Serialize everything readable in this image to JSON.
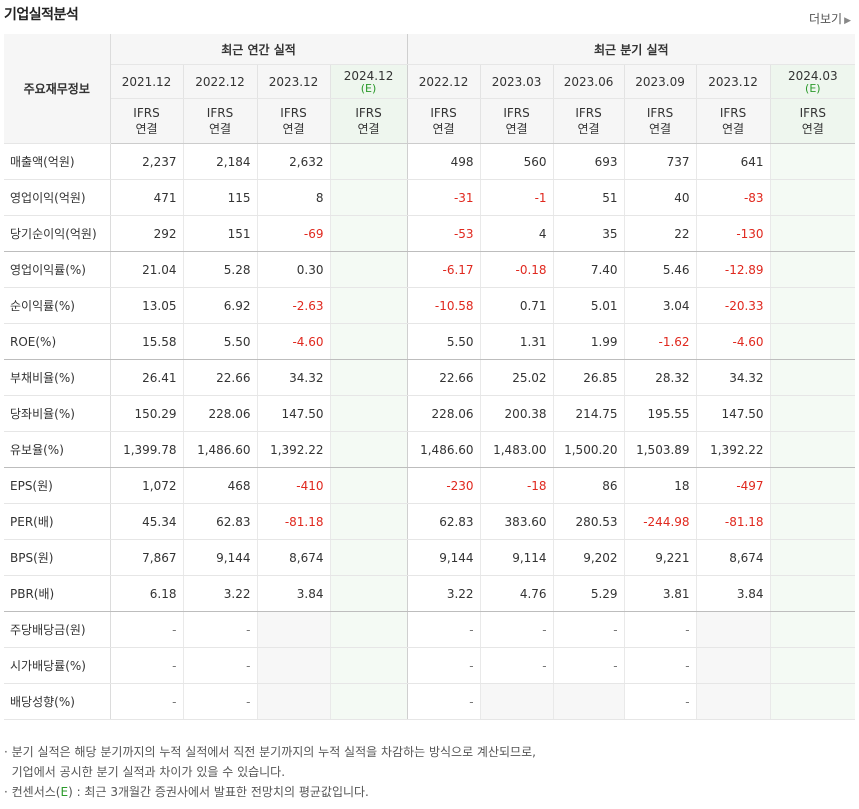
{
  "header": {
    "title": "기업실적분석",
    "more_label": "더보기"
  },
  "table": {
    "row_header": "주요재무정보",
    "annual_group": "최근 연간 실적",
    "quarter_group": "최근 분기 실적",
    "annual_periods": [
      {
        "label": "2021.12",
        "est": ""
      },
      {
        "label": "2022.12",
        "est": ""
      },
      {
        "label": "2023.12",
        "est": ""
      },
      {
        "label": "2024.12",
        "est": "(E)"
      }
    ],
    "quarter_periods": [
      {
        "label": "2022.12",
        "est": ""
      },
      {
        "label": "2023.03",
        "est": ""
      },
      {
        "label": "2023.06",
        "est": ""
      },
      {
        "label": "2023.09",
        "est": ""
      },
      {
        "label": "2023.12",
        "est": ""
      },
      {
        "label": "2024.03",
        "est": "(E)"
      }
    ],
    "ifrs_line1": "IFRS",
    "ifrs_line2": "연결",
    "rows": [
      {
        "label": "매출액(억원)",
        "annual": [
          "2,237",
          "2,184",
          "2,632",
          ""
        ],
        "quarter": [
          "498",
          "560",
          "693",
          "737",
          "641",
          ""
        ]
      },
      {
        "label": "영업이익(억원)",
        "annual": [
          "471",
          "115",
          "8",
          ""
        ],
        "quarter": [
          "-31",
          "-1",
          "51",
          "40",
          "-83",
          ""
        ]
      },
      {
        "label": "당기순이익(억원)",
        "annual": [
          "292",
          "151",
          "-69",
          ""
        ],
        "quarter": [
          "-53",
          "4",
          "35",
          "22",
          "-130",
          ""
        ]
      },
      {
        "label": "영업이익률(%)",
        "annual": [
          "21.04",
          "5.28",
          "0.30",
          ""
        ],
        "quarter": [
          "-6.17",
          "-0.18",
          "7.40",
          "5.46",
          "-12.89",
          ""
        ]
      },
      {
        "label": "순이익률(%)",
        "annual": [
          "13.05",
          "6.92",
          "-2.63",
          ""
        ],
        "quarter": [
          "-10.58",
          "0.71",
          "5.01",
          "3.04",
          "-20.33",
          ""
        ]
      },
      {
        "label": "ROE(%)",
        "annual": [
          "15.58",
          "5.50",
          "-4.60",
          ""
        ],
        "quarter": [
          "5.50",
          "1.31",
          "1.99",
          "-1.62",
          "-4.60",
          ""
        ]
      },
      {
        "label": "부채비율(%)",
        "annual": [
          "26.41",
          "22.66",
          "34.32",
          ""
        ],
        "quarter": [
          "22.66",
          "25.02",
          "26.85",
          "28.32",
          "34.32",
          ""
        ]
      },
      {
        "label": "당좌비율(%)",
        "annual": [
          "150.29",
          "228.06",
          "147.50",
          ""
        ],
        "quarter": [
          "228.06",
          "200.38",
          "214.75",
          "195.55",
          "147.50",
          ""
        ]
      },
      {
        "label": "유보율(%)",
        "annual": [
          "1,399.78",
          "1,486.60",
          "1,392.22",
          ""
        ],
        "quarter": [
          "1,486.60",
          "1,483.00",
          "1,500.20",
          "1,503.89",
          "1,392.22",
          ""
        ]
      },
      {
        "label": "EPS(원)",
        "annual": [
          "1,072",
          "468",
          "-410",
          ""
        ],
        "quarter": [
          "-230",
          "-18",
          "86",
          "18",
          "-497",
          ""
        ]
      },
      {
        "label": "PER(배)",
        "annual": [
          "45.34",
          "62.83",
          "-81.18",
          ""
        ],
        "quarter": [
          "62.83",
          "383.60",
          "280.53",
          "-244.98",
          "-81.18",
          ""
        ]
      },
      {
        "label": "BPS(원)",
        "annual": [
          "7,867",
          "9,144",
          "8,674",
          ""
        ],
        "quarter": [
          "9,144",
          "9,114",
          "9,202",
          "9,221",
          "8,674",
          ""
        ]
      },
      {
        "label": "PBR(배)",
        "annual": [
          "6.18",
          "3.22",
          "3.84",
          ""
        ],
        "quarter": [
          "3.22",
          "4.76",
          "5.29",
          "3.81",
          "3.84",
          ""
        ]
      },
      {
        "label": "주당배당금(원)",
        "annual": [
          "-",
          "-",
          "",
          ""
        ],
        "quarter": [
          "-",
          "-",
          "-",
          "-",
          "",
          ""
        ]
      },
      {
        "label": "시가배당률(%)",
        "annual": [
          "-",
          "-",
          "",
          ""
        ],
        "quarter": [
          "-",
          "-",
          "-",
          "-",
          "",
          ""
        ]
      },
      {
        "label": "배당성향(%)",
        "annual": [
          "-",
          "-",
          "",
          ""
        ],
        "quarter": [
          "-",
          "",
          "",
          "-",
          "",
          ""
        ]
      }
    ]
  },
  "notes": {
    "line1": "분기 실적은 해당 분기까지의 누적 실적에서 직전 분기까지의 누적 실적을 차감하는 방식으로 계산되므로,",
    "line2": "기업에서 공시한 분기 실적과 차이가 있을 수 있습니다.",
    "line3_pre": "컨센서스(",
    "line3_e": "E",
    "line3_post": ") : 최근 3개월간 증권사에서 발표한 전망치의 평균값입니다."
  },
  "colors": {
    "negative": "#e0281e",
    "ifrs": "#e87a17",
    "estimate": "#2b9a2b"
  }
}
